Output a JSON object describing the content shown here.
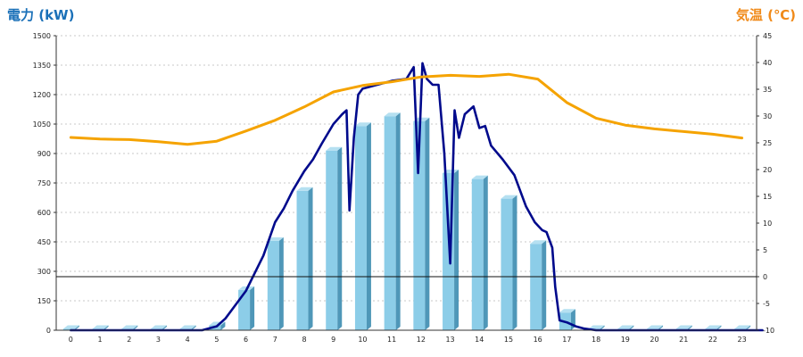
{
  "chart_data": {
    "type": "bar",
    "title_left": "電力 (kW)",
    "title_right": "気温 (℃)",
    "categories": [
      "0",
      "1",
      "2",
      "3",
      "4",
      "5",
      "6",
      "7",
      "8",
      "9",
      "10",
      "11",
      "12",
      "13",
      "14",
      "15",
      "16",
      "17",
      "18",
      "19",
      "20",
      "21",
      "22",
      "23"
    ],
    "y_left": {
      "min": 0,
      "max": 1500,
      "step": 150,
      "ticks": [
        "0",
        "150",
        "300",
        "450",
        "600",
        "750",
        "900",
        "1050",
        "1200",
        "1350",
        "1500"
      ]
    },
    "y_right": {
      "min": -10,
      "max": 45,
      "step": 5,
      "ticks": [
        "-10",
        "-5",
        "0",
        "5",
        "10",
        "15",
        "20",
        "25",
        "30",
        "35",
        "40",
        "45"
      ]
    },
    "grid": true,
    "series": [
      {
        "type": "bar",
        "axis": "left",
        "color": "#8ccde8",
        "values": [
          0,
          0,
          0,
          0,
          0,
          25,
          205,
          455,
          710,
          915,
          1040,
          1090,
          1065,
          800,
          770,
          670,
          440,
          90,
          5,
          0,
          0,
          0,
          0,
          0
        ]
      },
      {
        "type": "line",
        "axis": "left",
        "color": "#000a8c",
        "x": [
          0,
          4.5,
          5,
          5.3,
          5.6,
          6,
          6.3,
          6.6,
          7,
          7.3,
          7.6,
          8,
          8.3,
          8.6,
          9,
          9.3,
          9.45,
          9.55,
          9.7,
          9.85,
          10,
          10.5,
          11,
          11.5,
          11.75,
          11.9,
          12.05,
          12.2,
          12.4,
          12.6,
          12.8,
          13,
          13.15,
          13.3,
          13.5,
          13.8,
          14,
          14.2,
          14.4,
          14.8,
          15.2,
          15.6,
          15.9,
          16.15,
          16.3,
          16.5,
          16.6,
          16.75,
          17,
          17.3,
          17.6,
          18,
          23.7
        ],
        "values": [
          0,
          0,
          20,
          60,
          120,
          200,
          290,
          380,
          550,
          620,
          710,
          810,
          870,
          950,
          1050,
          1100,
          1120,
          610,
          980,
          1200,
          1230,
          1250,
          1270,
          1280,
          1340,
          800,
          1360,
          1280,
          1250,
          1250,
          900,
          340,
          1120,
          980,
          1100,
          1140,
          1030,
          1040,
          940,
          870,
          790,
          630,
          550,
          510,
          500,
          420,
          220,
          50,
          40,
          20,
          8,
          0,
          0
        ]
      },
      {
        "type": "line",
        "axis": "right",
        "color": "#f5a300",
        "x": [
          0,
          1,
          2,
          3,
          4,
          5,
          6,
          7,
          8,
          9,
          10,
          11,
          12,
          13,
          14,
          15,
          16,
          17,
          18,
          19,
          20,
          21,
          22,
          23
        ],
        "values": [
          26,
          25.7,
          25.6,
          25.2,
          24.7,
          25.3,
          27.2,
          29.2,
          31.7,
          34.5,
          35.7,
          36.4,
          37.3,
          37.6,
          37.4,
          37.8,
          36.9,
          32.5,
          29.6,
          28.3,
          27.6,
          27.1,
          26.6,
          25.9
        ]
      }
    ]
  }
}
